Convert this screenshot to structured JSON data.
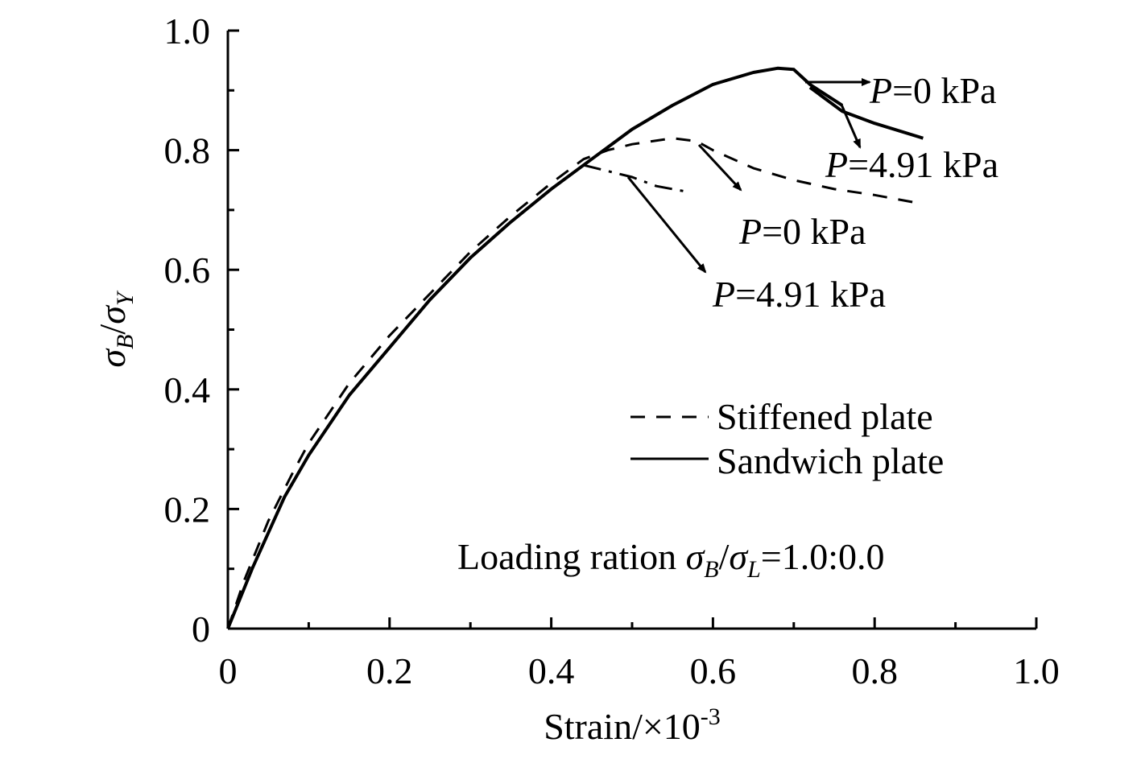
{
  "chart_data": {
    "type": "line",
    "title": "",
    "xlabel_text": "Strain/×10",
    "xlabel_exp": "-3",
    "ylabel": {
      "num": "σ",
      "num_sub": "B",
      "slash": "/",
      "den": "σ",
      "den_sub": "Y"
    },
    "xlim": [
      0,
      1.0
    ],
    "ylim": [
      0,
      1.0
    ],
    "x_ticks": [
      0,
      0.2,
      0.4,
      0.6,
      0.8,
      1.0
    ],
    "x_tick_labels": [
      "0",
      "0.2",
      "0.4",
      "0.6",
      "0.8",
      "1.0"
    ],
    "y_ticks": [
      0,
      0.2,
      0.4,
      0.6,
      0.8,
      1.0
    ],
    "y_tick_labels": [
      "0",
      "0.2",
      "0.4",
      "0.6",
      "0.8",
      "1.0"
    ],
    "x_minor_ticks": [
      0.1,
      0.3,
      0.5,
      0.7,
      0.9
    ],
    "y_minor_ticks": [
      0.1,
      0.3,
      0.5,
      0.7,
      0.9
    ],
    "grid": false,
    "legend_position": "middle-right",
    "series": [
      {
        "name": "Stiffened plate",
        "load": "P=0 kPa",
        "style": "dashed",
        "x": [
          0,
          0.02,
          0.05,
          0.08,
          0.1,
          0.15,
          0.2,
          0.25,
          0.3,
          0.35,
          0.4,
          0.44,
          0.47,
          0.5,
          0.55,
          0.58,
          0.6,
          0.65,
          0.7,
          0.75,
          0.8,
          0.86
        ],
        "y": [
          0,
          0.08,
          0.18,
          0.26,
          0.31,
          0.41,
          0.49,
          0.56,
          0.63,
          0.69,
          0.745,
          0.785,
          0.8,
          0.81,
          0.82,
          0.815,
          0.8,
          0.77,
          0.75,
          0.735,
          0.725,
          0.71
        ]
      },
      {
        "name": "Stiffened plate",
        "load": "P=4.91 kPa",
        "style": "dashdot",
        "x": [
          0.44,
          0.47,
          0.5,
          0.53,
          0.57
        ],
        "y": [
          0.775,
          0.765,
          0.755,
          0.74,
          0.73
        ]
      },
      {
        "name": "Sandwich plate",
        "load": "P=0 kPa",
        "style": "solid",
        "x": [
          0,
          0.03,
          0.07,
          0.1,
          0.15,
          0.2,
          0.25,
          0.3,
          0.35,
          0.4,
          0.45,
          0.5,
          0.55,
          0.6,
          0.65,
          0.68,
          0.7,
          0.72,
          0.76
        ],
        "y": [
          0,
          0.1,
          0.22,
          0.29,
          0.39,
          0.47,
          0.55,
          0.62,
          0.68,
          0.735,
          0.785,
          0.835,
          0.875,
          0.91,
          0.93,
          0.937,
          0.935,
          0.91,
          0.875
        ]
      },
      {
        "name": "Sandwich plate",
        "load": "P=4.91 kPa",
        "style": "solid",
        "x": [
          0.72,
          0.76,
          0.8,
          0.86
        ],
        "y": [
          0.905,
          0.865,
          0.845,
          0.82
        ]
      }
    ],
    "legend": [
      {
        "label": "Stiffened plate",
        "style": "dashed"
      },
      {
        "label": "Sandwich plate",
        "style": "solid"
      }
    ],
    "annotations": [
      {
        "id": "sandwich-p0",
        "prefix": "P",
        "text": "=0 kPa"
      },
      {
        "id": "sandwich-p491",
        "prefix": "P",
        "text": "=4.91 kPa"
      },
      {
        "id": "stiffened-p0",
        "prefix": "P",
        "text": "=0 kPa"
      },
      {
        "id": "stiffened-p491",
        "prefix": "P",
        "text": "=4.91 kPa"
      }
    ],
    "loading_note": {
      "prefix": "Loading ration ",
      "num": "σ",
      "num_sub": "B",
      "slash": "/",
      "den": "σ",
      "den_sub": "L",
      "suffix": "=1.0:0.0"
    }
  }
}
